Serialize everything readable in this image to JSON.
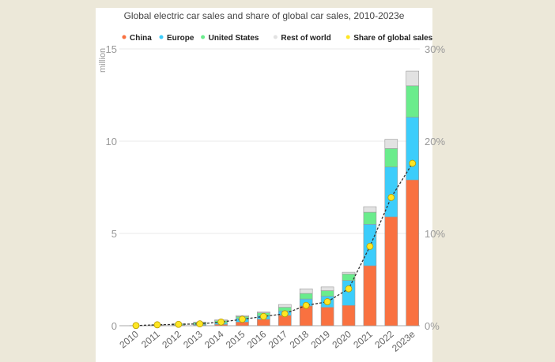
{
  "chart_data": {
    "type": "bar",
    "stacked": true,
    "title": "Global electric car sales and share of global car sales, 2010-2023e",
    "ylabel": "million",
    "ylim": [
      0,
      15
    ],
    "yticks": [
      0,
      5,
      10,
      15
    ],
    "y2lim": [
      0,
      30
    ],
    "y2ticks": [
      "0%",
      "10%",
      "20%",
      "30%"
    ],
    "grid": true,
    "legend": "top",
    "categories": [
      "2010",
      "2011",
      "2012",
      "2013",
      "2014",
      "2015",
      "2016",
      "2017",
      "2018",
      "2019",
      "2020",
      "2021",
      "2022",
      "2023e"
    ],
    "series": [
      {
        "name": "China",
        "color": "#f97140",
        "values": [
          0.0,
          0.01,
          0.01,
          0.02,
          0.07,
          0.2,
          0.35,
          0.56,
          1.07,
          1.0,
          1.1,
          3.25,
          5.9,
          7.9
        ]
      },
      {
        "name": "Europe",
        "color": "#3ccdfb",
        "values": [
          0.0,
          0.01,
          0.02,
          0.05,
          0.08,
          0.2,
          0.2,
          0.24,
          0.38,
          0.6,
          1.35,
          2.25,
          2.7,
          3.4
        ]
      },
      {
        "name": "United States",
        "color": "#6aec8c",
        "values": [
          0.0,
          0.01,
          0.05,
          0.1,
          0.12,
          0.1,
          0.15,
          0.2,
          0.3,
          0.3,
          0.35,
          0.65,
          1.0,
          1.7
        ]
      },
      {
        "name": "Rest of world",
        "color": "#e2e2e2",
        "values": [
          0.01,
          0.02,
          0.04,
          0.03,
          0.05,
          0.05,
          0.05,
          0.15,
          0.25,
          0.2,
          0.1,
          0.3,
          0.5,
          0.8
        ]
      }
    ],
    "line": {
      "name": "Share of global sales",
      "color": "#ffe623",
      "axis": "right",
      "style": "dashed",
      "values_percent": [
        0.02,
        0.1,
        0.15,
        0.2,
        0.4,
        0.7,
        1.0,
        1.3,
        2.2,
        2.6,
        4.0,
        8.6,
        13.9,
        17.6
      ]
    }
  }
}
